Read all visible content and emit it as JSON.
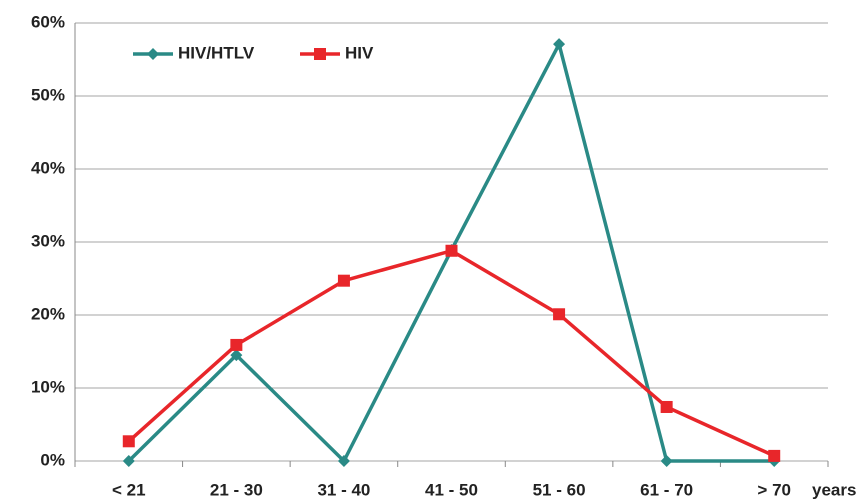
{
  "chart_data": {
    "type": "line",
    "categories": [
      "< 21",
      "21 - 30",
      "31 - 40",
      "41 - 50",
      "51 - 60",
      "61 - 70",
      "> 70"
    ],
    "x_label": "years",
    "series": [
      {
        "name": "HIV/HTLV",
        "color": "#2a8a86",
        "marker": "diamond",
        "values": [
          0,
          14.5,
          0,
          28.9,
          57.1,
          0,
          0
        ]
      },
      {
        "name": "HIV",
        "color": "#e8262a",
        "marker": "square",
        "values": [
          2.7,
          15.9,
          24.7,
          28.8,
          20.1,
          7.4,
          0.7
        ]
      }
    ],
    "ylim": [
      0,
      60
    ],
    "yticks": [
      {
        "value": 0,
        "label": "0%"
      },
      {
        "value": 10,
        "label": "10%"
      },
      {
        "value": 20,
        "label": "20%"
      },
      {
        "value": 30,
        "label": "30%"
      },
      {
        "value": 40,
        "label": "40%"
      },
      {
        "value": 50,
        "label": "50%"
      },
      {
        "value": 60,
        "label": "60%"
      }
    ],
    "grid": true,
    "legend": "top-left"
  }
}
